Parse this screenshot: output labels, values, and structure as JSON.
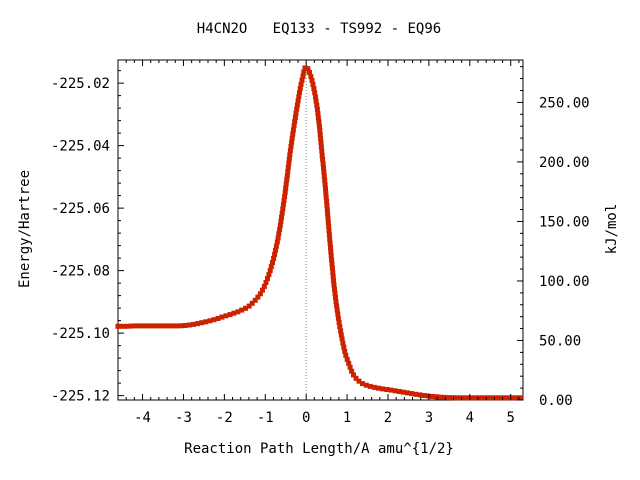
{
  "chart_data": {
    "type": "line",
    "title": "H4CN2O   EQ133 - TS992 - EQ96",
    "xlabel": "Reaction Path Length/A amu^{1/2}",
    "ylabel": "Energy/Hartree",
    "y2label": "kJ/mol",
    "xlim": [
      -4.6,
      5.3
    ],
    "ylim": [
      -225.1214,
      -225.0126
    ],
    "y2lim": [
      0,
      285.6
    ],
    "x_ticks": [
      -4,
      -3,
      -2,
      -1,
      0,
      1,
      2,
      3,
      4,
      5
    ],
    "x_tick_labels": [
      "-4",
      "-3",
      "-2",
      "-1",
      "0",
      "1",
      "2",
      "3",
      "4",
      "5"
    ],
    "y_ticks": [
      -225.02,
      -225.04,
      -225.06,
      -225.08,
      -225.1,
      -225.12
    ],
    "y_tick_labels": [
      "-225.02",
      "-225.04",
      "-225.06",
      "-225.08",
      "-225.10",
      "-225.12"
    ],
    "y2_ticks": [
      250,
      200,
      150,
      100,
      50,
      0
    ],
    "y2_tick_labels": [
      "250.00",
      "200.00",
      "150.00",
      "100.00",
      "50.00",
      "0.00"
    ],
    "ts_line_x": 0,
    "grid": false,
    "colors": {
      "line": "#1fa51f",
      "points": "#cc2200",
      "ts_line": "#888888"
    },
    "series": [
      {
        "x": [
          -4.6,
          -4.4,
          -4.2,
          -4.0,
          -3.8,
          -3.6,
          -3.4,
          -3.2,
          -3.0,
          -2.8,
          -2.6,
          -2.4,
          -2.2,
          -2.0,
          -1.8,
          -1.6,
          -1.4,
          -1.3,
          -1.2,
          -1.1,
          -1.0,
          -0.9,
          -0.8,
          -0.7,
          -0.6,
          -0.5,
          -0.4,
          -0.3,
          -0.2,
          -0.1,
          0.0,
          0.15,
          0.28,
          0.38,
          0.48,
          0.57,
          0.66,
          0.75,
          0.85,
          0.95,
          1.05,
          1.15,
          1.3,
          1.5,
          1.8,
          2.1,
          2.5,
          2.9,
          3.3,
          3.7,
          4.2,
          4.7,
          5.3
        ],
        "y": [
          -225.0978,
          -225.0978,
          -225.0977,
          -225.0977,
          -225.0977,
          -225.0977,
          -225.0977,
          -225.0977,
          -225.0976,
          -225.0973,
          -225.0968,
          -225.0962,
          -225.0955,
          -225.0946,
          -225.0938,
          -225.0928,
          -225.0914,
          -225.0902,
          -225.0888,
          -225.087,
          -225.0844,
          -225.0808,
          -225.0762,
          -225.0705,
          -225.0628,
          -225.0536,
          -225.043,
          -225.034,
          -225.0258,
          -225.019,
          -225.0148,
          -225.0195,
          -225.029,
          -225.0415,
          -225.055,
          -225.069,
          -225.082,
          -225.092,
          -225.1,
          -225.1062,
          -225.11,
          -225.1132,
          -225.1155,
          -225.1168,
          -225.1177,
          -225.1183,
          -225.1192,
          -225.12,
          -225.1205,
          -225.1207,
          -225.1207,
          -225.1207,
          -225.1207
        ]
      }
    ]
  }
}
